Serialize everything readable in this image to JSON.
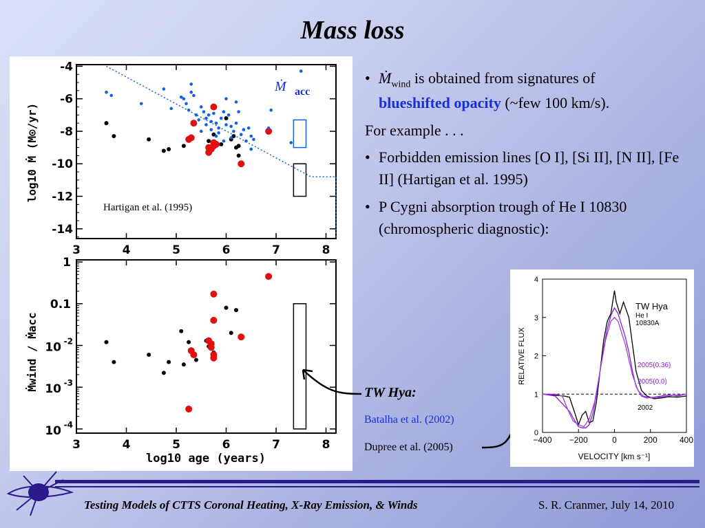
{
  "slide": {
    "title": "Mass loss",
    "bullets": {
      "b1_sym": "Ṁ",
      "b1_sub": "wind",
      "b1_text": " is obtained from signatures of",
      "b1_blue": "blueshifted opacity",
      "b1_rest": " (~few 100 km/s).",
      "example": "For example . . .",
      "b2": "Forbidden emission lines [O I], [Si II], [N II], [Fe II]  (Hartigan et al. 1995)",
      "b3": "P Cygni absorption trough of He I 10830 (chromospheric diagnostic):"
    },
    "tw_hya_label": "TW Hya:",
    "ref_batalha": "Batalha et al. (2002)",
    "ref_dupree": "Dupree et al. (2005)",
    "footer_left": "Testing Models of CTTS Coronal Heating, X-Ray Emission, & Winds",
    "footer_right": "S. R. Cranmer, July 14, 2010"
  },
  "colors": {
    "accent_blue": "#1a2fd6",
    "footer_bar": "#2b1a8a",
    "black_points": "#000000",
    "red_points": "#e01010",
    "blue_points": "#1060e0",
    "purple_line": "#8a20d0"
  },
  "chart_data": [
    {
      "type": "scatter",
      "title": "",
      "annotation": "Hartigan et al. (1995)",
      "legend_label_sym": "Ṁ",
      "legend_label_sub": "acc",
      "ylabel": "log10 Ṁ (M⊙/yr)",
      "xlabel": "",
      "xlim": [
        3,
        8.2
      ],
      "ylim": [
        -14.6,
        -3.9
      ],
      "xticks": [
        "3",
        "4",
        "5",
        "6",
        "7",
        "8"
      ],
      "yticks": [
        "-4",
        "-6",
        "-8",
        "-10",
        "-12",
        "-14"
      ],
      "series": [
        {
          "color": "black",
          "points": [
            [
              3.6,
              -7.5
            ],
            [
              3.75,
              -8.3
            ],
            [
              4.45,
              -8.5
            ],
            [
              4.75,
              -9.2
            ],
            [
              4.85,
              -9.1
            ],
            [
              5.15,
              -8.9
            ],
            [
              5.65,
              -8.6
            ],
            [
              5.75,
              -8.2
            ],
            [
              5.9,
              -8.8
            ],
            [
              6.0,
              -7.2
            ],
            [
              6.1,
              -8.5
            ],
            [
              6.15,
              -8.3
            ],
            [
              6.25,
              -9.5
            ],
            [
              6.2,
              -9.0
            ],
            [
              6.25,
              -8.9
            ]
          ]
        },
        {
          "color": "red",
          "points": [
            [
              5.25,
              -8.5
            ],
            [
              5.3,
              -8.4
            ],
            [
              5.35,
              -7.5
            ],
            [
              5.65,
              -9.0
            ],
            [
              5.65,
              -9.3
            ],
            [
              5.7,
              -9.1
            ],
            [
              5.75,
              -8.9
            ],
            [
              5.75,
              -8.7
            ],
            [
              5.8,
              -8.8
            ],
            [
              5.75,
              -6.5
            ],
            [
              6.3,
              -10.0
            ],
            [
              6.85,
              -8.0
            ]
          ]
        },
        {
          "color": "blue",
          "points": [
            [
              3.6,
              -5.6
            ],
            [
              3.7,
              -5.8
            ],
            [
              4.3,
              -6.3
            ],
            [
              4.75,
              -5.4
            ],
            [
              4.9,
              -6.6
            ],
            [
              5.1,
              -5.9
            ],
            [
              5.15,
              -6.0
            ],
            [
              5.2,
              -6.3
            ],
            [
              5.3,
              -5.6
            ],
            [
              5.35,
              -5.8
            ],
            [
              5.25,
              -6.7
            ],
            [
              5.4,
              -7.0
            ],
            [
              5.5,
              -6.5
            ],
            [
              5.55,
              -6.8
            ],
            [
              5.6,
              -7.2
            ],
            [
              5.65,
              -7.0
            ],
            [
              5.7,
              -7.4
            ],
            [
              5.75,
              -6.9
            ],
            [
              5.8,
              -7.5
            ],
            [
              5.85,
              -7.8
            ],
            [
              5.9,
              -7.2
            ],
            [
              5.95,
              -6.8
            ],
            [
              6.0,
              -7.6
            ],
            [
              6.05,
              -7.0
            ],
            [
              6.1,
              -7.7
            ],
            [
              6.15,
              -8.0
            ],
            [
              6.2,
              -7.5
            ],
            [
              6.25,
              -6.8
            ],
            [
              6.3,
              -8.2
            ],
            [
              6.35,
              -7.9
            ],
            [
              6.4,
              -8.6
            ],
            [
              6.45,
              -7.8
            ],
            [
              6.5,
              -8.3
            ],
            [
              6.55,
              -8.5
            ],
            [
              6.1,
              -8.4
            ],
            [
              5.95,
              -8.6
            ],
            [
              5.85,
              -8.1
            ],
            [
              5.7,
              -7.9
            ],
            [
              5.6,
              -7.6
            ],
            [
              5.5,
              -8.0
            ],
            [
              5.45,
              -7.3
            ],
            [
              6.0,
              -6.0
            ],
            [
              6.2,
              -6.2
            ],
            [
              6.85,
              -7.8
            ],
            [
              6.9,
              -6.7
            ],
            [
              7.3,
              -8.7
            ],
            [
              7.5,
              -4.3
            ],
            [
              5.3,
              -5.1
            ],
            [
              6.5,
              -9.1
            ],
            [
              5.8,
              -8.3
            ]
          ]
        }
      ],
      "shapes": {
        "blue_box": {
          "x": [
            7.35,
            7.6
          ],
          "y": [
            -7.3,
            -9.0
          ]
        },
        "black_box": {
          "x": [
            7.35,
            7.6
          ],
          "y": [
            -10.0,
            -12.0
          ]
        },
        "dotted_line": [
          [
            3.6,
            -4.0
          ],
          [
            7.7,
            -10.8
          ],
          [
            8.2,
            -10.8
          ],
          [
            8.2,
            -14.6
          ]
        ]
      }
    },
    {
      "type": "scatter",
      "title": "",
      "ylabel": "Ṁwind / Ṁacc",
      "xlabel": "log10 age (years)",
      "xlim": [
        3,
        8.2
      ],
      "ylim_log10": [
        -4.1,
        0.05
      ],
      "xticks": [
        "3",
        "4",
        "5",
        "6",
        "7",
        "8"
      ],
      "yticks": [
        "1",
        "0.1",
        "10^-2",
        "10^-3",
        "10^-4"
      ],
      "series": [
        {
          "color": "black",
          "points": [
            [
              3.6,
              0.012
            ],
            [
              3.75,
              0.004
            ],
            [
              4.45,
              0.006
            ],
            [
              4.75,
              0.0022
            ],
            [
              4.85,
              0.004
            ],
            [
              5.15,
              0.0035
            ],
            [
              5.4,
              0.0045
            ],
            [
              5.65,
              0.0095
            ],
            [
              5.75,
              0.0068
            ],
            [
              5.6,
              0.013
            ],
            [
              6.0,
              0.08
            ],
            [
              6.1,
              0.02
            ],
            [
              6.2,
              0.07
            ],
            [
              5.25,
              0.012
            ],
            [
              5.1,
              0.022
            ]
          ]
        },
        {
          "color": "red",
          "points": [
            [
              5.25,
              0.0003
            ],
            [
              5.3,
              0.0075
            ],
            [
              5.35,
              0.006
            ],
            [
              5.65,
              0.013
            ],
            [
              5.7,
              0.009
            ],
            [
              5.7,
              0.011
            ],
            [
              5.75,
              0.006
            ],
            [
              5.75,
              0.005
            ],
            [
              5.75,
              0.04
            ],
            [
              5.75,
              0.17
            ],
            [
              6.3,
              0.016
            ],
            [
              6.85,
              0.45
            ]
          ]
        }
      ],
      "shapes": {
        "black_box": {
          "x": [
            7.35,
            7.6
          ],
          "y": [
            0.1,
            0.0001
          ]
        }
      }
    },
    {
      "type": "line",
      "title": "",
      "xlabel": "VELOCITY [km s⁻¹]",
      "ylabel": "RELATIVE FLUX",
      "xlim": [
        -400,
        400
      ],
      "ylim": [
        0,
        4
      ],
      "xticks": [
        "−400",
        "−200",
        "0",
        "200",
        "400"
      ],
      "yticks": [
        "0",
        "1",
        "2",
        "3",
        "4"
      ],
      "legend": [
        "TW Hya",
        "He I",
        "10830A",
        "2005(0.36)",
        "2005(0.0)",
        "2002"
      ],
      "series": [
        {
          "name": "2002",
          "color": "#000000",
          "points": [
            [
              -400,
              1.0
            ],
            [
              -330,
              0.97
            ],
            [
              -280,
              0.95
            ],
            [
              -250,
              0.92
            ],
            [
              -220,
              0.5
            ],
            [
              -200,
              0.2
            ],
            [
              -180,
              0.45
            ],
            [
              -160,
              0.55
            ],
            [
              -140,
              0.25
            ],
            [
              -120,
              0.3
            ],
            [
              -100,
              0.8
            ],
            [
              -80,
              1.6
            ],
            [
              -60,
              2.4
            ],
            [
              -40,
              2.9
            ],
            [
              -20,
              3.1
            ],
            [
              0,
              3.7
            ],
            [
              10,
              3.4
            ],
            [
              30,
              3.1
            ],
            [
              50,
              3.4
            ],
            [
              80,
              3.0
            ],
            [
              100,
              2.3
            ],
            [
              120,
              1.6
            ],
            [
              150,
              1.1
            ],
            [
              180,
              0.95
            ],
            [
              220,
              0.88
            ],
            [
              260,
              0.9
            ],
            [
              300,
              0.93
            ],
            [
              350,
              0.92
            ],
            [
              400,
              0.95
            ]
          ]
        },
        {
          "name": "2005(0.36)",
          "color": "#8a20d0",
          "points": [
            [
              -400,
              1.0
            ],
            [
              -330,
              0.95
            ],
            [
              -280,
              0.7
            ],
            [
              -250,
              0.55
            ],
            [
              -220,
              0.3
            ],
            [
              -200,
              0.15
            ],
            [
              -180,
              0.12
            ],
            [
              -160,
              0.12
            ],
            [
              -140,
              0.2
            ],
            [
              -120,
              0.5
            ],
            [
              -100,
              1.0
            ],
            [
              -80,
              1.6
            ],
            [
              -60,
              2.2
            ],
            [
              -40,
              2.7
            ],
            [
              -20,
              3.05
            ],
            [
              0,
              3.25
            ],
            [
              20,
              3.1
            ],
            [
              40,
              2.8
            ],
            [
              60,
              2.5
            ],
            [
              80,
              2.1
            ],
            [
              100,
              1.6
            ],
            [
              120,
              1.2
            ],
            [
              150,
              0.95
            ],
            [
              180,
              0.9
            ],
            [
              220,
              0.92
            ],
            [
              260,
              0.95
            ],
            [
              300,
              0.98
            ],
            [
              350,
              0.95
            ],
            [
              400,
              1.0
            ]
          ]
        },
        {
          "name": "2005(0.0)",
          "color": "#a040e0",
          "points": [
            [
              -400,
              1.0
            ],
            [
              -330,
              1.0
            ],
            [
              -290,
              0.95
            ],
            [
              -260,
              0.6
            ],
            [
              -230,
              0.3
            ],
            [
              -200,
              0.2
            ],
            [
              -170,
              0.15
            ],
            [
              -140,
              0.35
            ],
            [
              -110,
              0.8
            ],
            [
              -80,
              1.6
            ],
            [
              -50,
              2.4
            ],
            [
              -20,
              2.9
            ],
            [
              0,
              3.0
            ],
            [
              20,
              2.9
            ],
            [
              40,
              2.6
            ],
            [
              60,
              2.3
            ],
            [
              80,
              1.9
            ],
            [
              100,
              1.5
            ],
            [
              130,
              1.1
            ],
            [
              160,
              0.95
            ],
            [
              200,
              0.9
            ],
            [
              250,
              0.92
            ],
            [
              300,
              0.95
            ],
            [
              400,
              1.0
            ]
          ]
        }
      ],
      "reference_line_y": 1.0
    }
  ]
}
